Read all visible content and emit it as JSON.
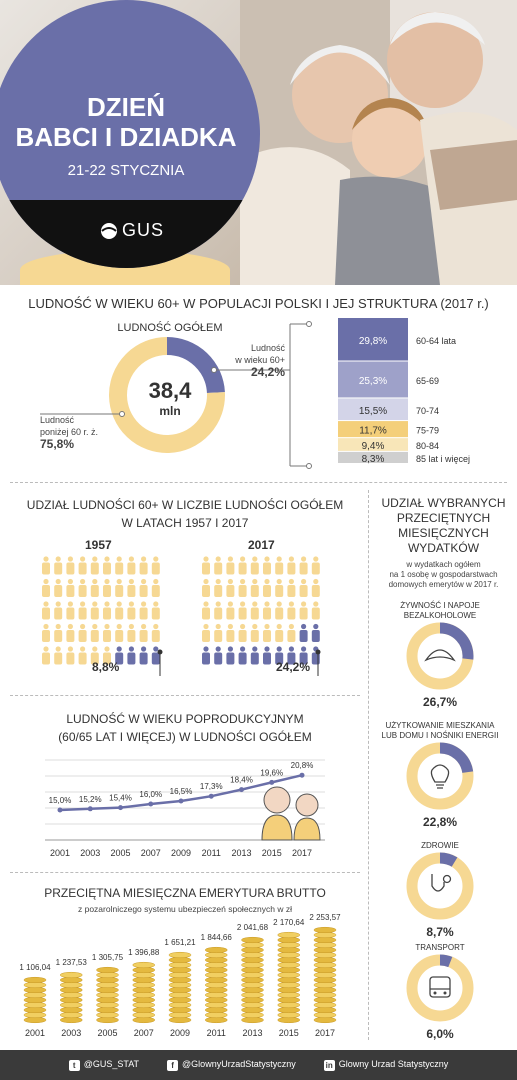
{
  "header": {
    "title_line1": "DZIEŃ",
    "title_line2": "BABCI I DZIADKA",
    "date": "21-22 STYCZNIA",
    "logo_text": "GUS"
  },
  "section1": {
    "title": "LUDNOŚĆ W WIEKU 60+ W POPULACJI POLSKI I JEJ STRUKTURA (2017 r.)",
    "donut_label": "LUDNOŚĆ OGÓŁEM",
    "total_value": "38,4",
    "total_unit": "mln",
    "label_60plus_line1": "Ludność",
    "label_60plus_line2": "w wieku 60+",
    "label_60plus_value": "24,2%",
    "label_below_line1": "Ludność",
    "label_below_line2": "poniżej 60 r. ż.",
    "label_below_value": "75,8%"
  },
  "section2": {
    "title_line1": "UDZIAŁ LUDNOŚCI 60+ W LICZBIE LUDNOŚCI OGÓŁEM",
    "title_line2": "W LATACH 1957 I 2017",
    "year_a": "1957",
    "year_b": "2017",
    "value_a": "8,8%",
    "value_b": "24,2%"
  },
  "section3": {
    "title_line1": "LUDNOŚĆ W WIEKU POPRODUKCYJNYM",
    "title_line2": "(60/65 LAT I WIĘCEJ) W LUDNOŚCI OGÓŁEM"
  },
  "section4": {
    "title": "PRZECIĘTNA MIESIĘCZNA EMERYTURA BRUTTO",
    "subtitle": "z pozarolniczego systemu ubezpieczeń społecznych w zł"
  },
  "side": {
    "title_line1": "UDZIAŁ WYBRANYCH",
    "title_line2": "PRZECIĘTNYCH",
    "title_line3": "MIESIĘCZNYCH",
    "title_line4": "WYDATKÓW",
    "sub_line1": "w wydatkach ogółem",
    "sub_line2": "na 1 osobę w gospodarstwach",
    "sub_line3": "domowych emerytów w 2017 r."
  },
  "footer": {
    "twitter": "@GUS_STAT",
    "facebook": "@GlownyUrzadStatystyczny",
    "linkedin": "Glowny Urzad Statystyczny"
  },
  "colors": {
    "accent": "#6a6fa8",
    "yellow": "#f6d893",
    "gold": "#e9c24c"
  },
  "chart_data": [
    {
      "type": "pie",
      "labels": [
        "Ludność w wieku 60+",
        "Ludność poniżej 60 r. ż."
      ],
      "values": [
        24.2,
        75.8
      ]
    },
    {
      "type": "bar",
      "categories": [
        "60-64 lata",
        "65-69",
        "70-74",
        "75-79",
        "80-84",
        "85 lat i więcej"
      ],
      "values": [
        29.8,
        25.3,
        15.5,
        11.7,
        9.4,
        8.3
      ],
      "value_labels": [
        "29,8%",
        "25,3%",
        "15,5%",
        "11,7%",
        "9,4%",
        "8,3%"
      ]
    },
    {
      "type": "bar",
      "categories": [
        "1957",
        "2017"
      ],
      "values": [
        8.8,
        24.2
      ]
    },
    {
      "type": "line",
      "x": [
        "2001",
        "2003",
        "2005",
        "2007",
        "2009",
        "2011",
        "2013",
        "2015",
        "2017"
      ],
      "values": [
        15.0,
        15.2,
        15.4,
        16.0,
        16.5,
        17.3,
        18.4,
        19.6,
        20.8
      ],
      "value_labels": [
        "15,0%",
        "15,2%",
        "15,4%",
        "16,0%",
        "16,5%",
        "17,3%",
        "18,4%",
        "19,6%",
        "20,8%"
      ]
    },
    {
      "type": "bar",
      "categories": [
        "2001",
        "2003",
        "2005",
        "2007",
        "2009",
        "2011",
        "2013",
        "2015",
        "2017"
      ],
      "values": [
        1106.04,
        1237.53,
        1305.75,
        1396.88,
        1651.21,
        1844.66,
        2041.68,
        2170.64,
        2253.57
      ],
      "value_labels": [
        "1 106,04",
        "1 237,53",
        "1 305,75",
        "1 396,88",
        "1 651,21",
        "1 844,66",
        "2 041,68",
        "2 170,64",
        "2 253,57"
      ]
    },
    {
      "type": "pie",
      "items": [
        {
          "label_line1": "ŻYWNOŚĆ I NAPOJE",
          "label_line2": "BEZALKOHOLOWE",
          "value": 26.7,
          "value_label": "26,7%",
          "icon": "croissant-icon"
        },
        {
          "label_line1": "UŻYTKOWANIE MIESZKANIA",
          "label_line2": "LUB DOMU I NOŚNIKI ENERGII",
          "value": 22.8,
          "value_label": "22,8%",
          "icon": "lightbulb-icon"
        },
        {
          "label_line1": "ZDROWIE",
          "label_line2": "",
          "value": 8.7,
          "value_label": "8,7%",
          "icon": "stethoscope-icon"
        },
        {
          "label_line1": "TRANSPORT",
          "label_line2": "",
          "value": 6.0,
          "value_label": "6,0%",
          "icon": "bus-icon"
        }
      ]
    }
  ]
}
